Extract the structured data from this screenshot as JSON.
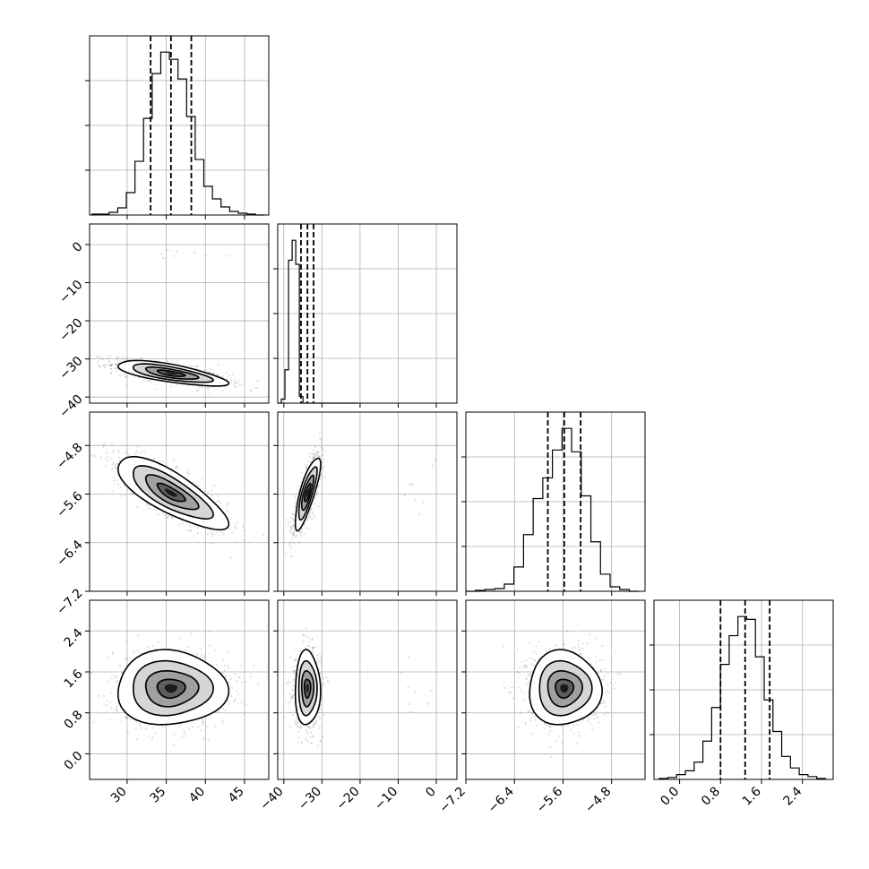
{
  "chart_data": {
    "type": "corner",
    "params": [
      {
        "ticks": [
          30,
          35,
          40,
          45
        ],
        "tick_labels": [
          "30",
          "35",
          "40",
          "45"
        ],
        "range": [
          25.2,
          48.1
        ]
      },
      {
        "ticks": [
          -40,
          -30,
          -20,
          -10,
          0
        ],
        "tick_labels": [
          "−40",
          "−30",
          "−20",
          "−10",
          "0"
        ],
        "range": [
          -41.6,
          5.4
        ]
      },
      {
        "ticks": [
          -7.2,
          -6.4,
          -5.6,
          -4.8
        ],
        "tick_labels": [
          "−7.2",
          "−6.4",
          "−5.6",
          "−4.8"
        ],
        "range": [
          -7.2,
          -4.25
        ]
      },
      {
        "ticks": [
          0.0,
          0.8,
          1.6,
          2.4
        ],
        "tick_labels": [
          "0.0",
          "0.8",
          "1.6",
          "2.4"
        ],
        "range": [
          -0.5,
          3.0
        ]
      }
    ],
    "histograms": [
      {
        "quantiles": [
          33.0,
          35.6,
          38.2
        ],
        "counts": [
          1,
          1,
          3,
          8,
          25,
          60,
          108,
          158,
          182,
          174,
          152,
          110,
          62,
          32,
          18,
          9,
          4,
          2,
          1,
          0
        ]
      },
      {
        "quantiles": [
          -35.5,
          -33.8,
          -32.2
        ],
        "counts": [
          0,
          3,
          25,
          107,
          122,
          104,
          5,
          0,
          0,
          0,
          0,
          0,
          0,
          0,
          0,
          0,
          0,
          0,
          0,
          0,
          0,
          0
        ]
      },
      {
        "quantiles": [
          -5.85,
          -5.58,
          -5.31
        ],
        "counts": [
          0,
          1,
          2,
          3,
          8,
          27,
          63,
          103,
          126,
          157,
          181,
          155,
          106,
          55,
          19,
          5,
          2,
          0
        ]
      },
      {
        "quantiles": [
          0.8,
          1.28,
          1.76
        ],
        "counts": [
          1,
          2,
          5,
          9,
          18,
          40,
          75,
          120,
          150,
          170,
          167,
          128,
          83,
          50,
          24,
          12,
          5,
          3,
          1
        ]
      }
    ],
    "pairs": [
      {
        "x": 0,
        "y": 1,
        "mean": [
          35.6,
          -33.8
        ],
        "sd": [
          3.2,
          1.5
        ],
        "rho": -0.7
      },
      {
        "x": 0,
        "y": 2,
        "mean": [
          35.6,
          -5.58
        ],
        "sd": [
          3.2,
          0.27
        ],
        "rho": -0.78
      },
      {
        "x": 0,
        "y": 3,
        "mean": [
          35.6,
          1.28
        ],
        "sd": [
          3.2,
          0.33
        ],
        "rho": 0.0
      },
      {
        "x": 1,
        "y": 2,
        "mean": [
          -33.8,
          -5.58
        ],
        "sd": [
          1.5,
          0.27
        ],
        "rho": 0.8
      },
      {
        "x": 1,
        "y": 3,
        "mean": [
          -33.8,
          1.28
        ],
        "sd": [
          1.5,
          0.33
        ],
        "rho": 0.0
      },
      {
        "x": 2,
        "y": 3,
        "mean": [
          -5.58,
          1.28
        ],
        "sd": [
          0.27,
          0.33
        ],
        "rho": 0.0
      }
    ],
    "grid": true
  }
}
